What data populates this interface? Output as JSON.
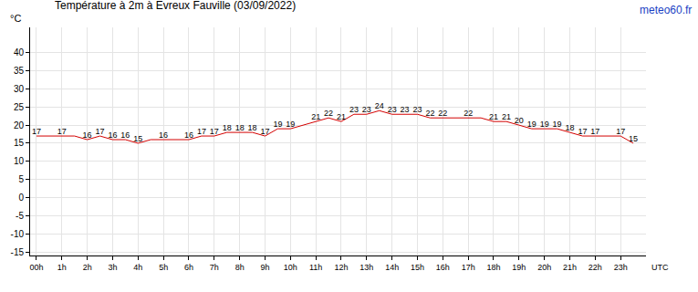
{
  "chart_data": {
    "type": "line",
    "title": "Température à 2m à Evreux Fauville (03/09/2022)",
    "source": "meteo60.fr",
    "x_label": "UTC",
    "y_label": "°C",
    "x": [
      0,
      0.5,
      1,
      1.5,
      2,
      2.5,
      3,
      3.5,
      4,
      4.5,
      5,
      5.5,
      6,
      6.5,
      7,
      7.5,
      8,
      8.5,
      9,
      9.5,
      10,
      10.5,
      11,
      11.5,
      12,
      12.5,
      13,
      13.5,
      14,
      14.5,
      15,
      15.5,
      16,
      16.5,
      17,
      17.5,
      18,
      18.5,
      19,
      19.5,
      20,
      20.5,
      21,
      21.5,
      22,
      22.5,
      23,
      23.5
    ],
    "values": [
      17,
      17,
      17,
      17,
      16,
      17,
      16,
      16,
      15,
      16,
      16,
      16,
      16,
      17,
      17,
      18,
      18,
      18,
      17,
      19,
      19,
      20,
      21,
      22,
      21,
      23,
      23,
      24,
      23,
      23,
      23,
      22,
      22,
      22,
      22,
      22,
      21,
      21,
      20,
      19,
      19,
      19,
      18,
      17,
      17,
      17,
      17,
      15
    ],
    "value_labels": [
      "17",
      null,
      "17",
      null,
      "16",
      "17",
      "16",
      "16",
      "15",
      null,
      "16",
      null,
      "16",
      "17",
      "17",
      "18",
      "18",
      "18",
      "17",
      "19",
      "19",
      null,
      "21",
      "22",
      "21",
      "23",
      "23",
      "24",
      "23",
      "23",
      "23",
      "22",
      "22",
      null,
      "22",
      null,
      "21",
      "21",
      "20",
      "19",
      "19",
      "19",
      "18",
      "17",
      "17",
      null,
      "17",
      "15"
    ],
    "data_labels": true,
    "color": "#d40000",
    "xlim": [
      -0.25,
      24
    ],
    "xticks": [
      {
        "value": 0,
        "label": "00h"
      },
      {
        "value": 1,
        "label": "1h"
      },
      {
        "value": 2,
        "label": "2h"
      },
      {
        "value": 3,
        "label": "3h"
      },
      {
        "value": 4,
        "label": "4h"
      },
      {
        "value": 5,
        "label": "5h"
      },
      {
        "value": 6,
        "label": "6h"
      },
      {
        "value": 7,
        "label": "7h"
      },
      {
        "value": 8,
        "label": "8h"
      },
      {
        "value": 9,
        "label": "9h"
      },
      {
        "value": 10,
        "label": "10h"
      },
      {
        "value": 11,
        "label": "11h"
      },
      {
        "value": 12,
        "label": "12h"
      },
      {
        "value": 13,
        "label": "13h"
      },
      {
        "value": 14,
        "label": "14h"
      },
      {
        "value": 15,
        "label": "15h"
      },
      {
        "value": 16,
        "label": "16h"
      },
      {
        "value": 17,
        "label": "17h"
      },
      {
        "value": 18,
        "label": "18h"
      },
      {
        "value": 19,
        "label": "19h"
      },
      {
        "value": 20,
        "label": "20h"
      },
      {
        "value": 21,
        "label": "21h"
      },
      {
        "value": 22,
        "label": "22h"
      },
      {
        "value": 23,
        "label": "23h"
      }
    ],
    "ylim": [
      -16,
      47
    ],
    "yticks": [
      -15,
      -10,
      -5,
      0,
      5,
      10,
      15,
      20,
      25,
      30,
      35,
      40
    ],
    "grid": true
  }
}
